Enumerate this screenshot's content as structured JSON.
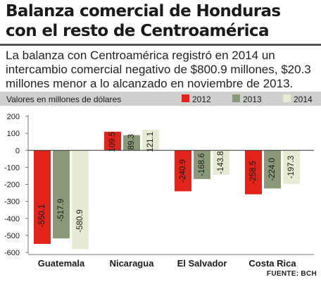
{
  "header": {
    "title": "Balanza comercial de Honduras con el resto de Centroamérica",
    "intro": "La balanza con Centroamérica registró en 2014 un intercambio comercial negativo de $800.9 millones, $20.3 millones menor a lo alcanzado en noviembre de 2013."
  },
  "source": "FUENTE: BCH",
  "colors": {
    "2012": "#e2231a",
    "2013": "#8a9a78",
    "2014": "#e6ebd3",
    "legend_bar": "#cfcfcf"
  },
  "chart_data": {
    "type": "bar",
    "subtitle": "Valores en millones de dólares",
    "categories": [
      "Guatemala",
      "Nicaragua",
      "El Salvador",
      "Costa Rica"
    ],
    "series": [
      {
        "name": "2012",
        "values": [
          -550.1,
          109.5,
          -240.9,
          -258.5
        ],
        "labels": [
          "-550.1",
          "109.5",
          "-240.9",
          "-258.5"
        ]
      },
      {
        "name": "2013",
        "values": [
          -517.9,
          89.3,
          -168.6,
          -224.0
        ],
        "labels": [
          "-517.9",
          "89.3",
          "-168.6",
          "-224.0"
        ]
      },
      {
        "name": "2014",
        "values": [
          -580.9,
          121.1,
          -143.8,
          -197.3
        ],
        "labels": [
          "-580.9",
          "121.1",
          "-143.8",
          "-197.3"
        ]
      }
    ],
    "ylim": [
      -600,
      200
    ],
    "yticks": [
      200,
      100,
      0,
      -100,
      -200,
      -300,
      -400,
      -500,
      -600
    ],
    "legend_position": "top-right",
    "grid": false
  }
}
